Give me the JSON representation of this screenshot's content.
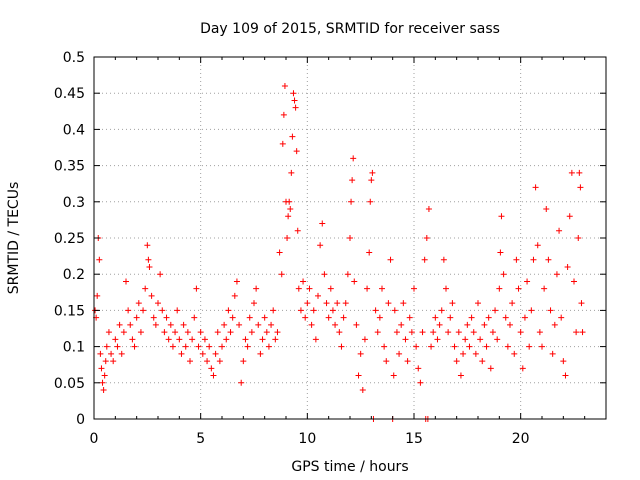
{
  "chart_data": {
    "type": "scatter",
    "title": "Day 109 of 2015, SRMTID for receiver sass",
    "xlabel": "GPS time / hours",
    "ylabel": "SRMTID / TECUs",
    "xlim": [
      0,
      24
    ],
    "ylim": [
      0,
      0.5
    ],
    "xticks": [
      0,
      5,
      10,
      15,
      20
    ],
    "xtick_labels": [
      "0",
      "5",
      "10",
      "15",
      "20"
    ],
    "yticks": [
      0,
      0.05,
      0.1,
      0.15,
      0.2,
      0.25,
      0.3,
      0.35,
      0.4,
      0.45,
      0.5
    ],
    "ytick_labels": [
      "0",
      "0.05",
      "0.1",
      "0.15",
      "0.2",
      "0.25",
      "0.3",
      "0.35",
      "0.4",
      "0.45",
      "0.5"
    ],
    "grid": true,
    "marker": "+",
    "color": "#ff0000",
    "series": [
      {
        "name": "SRMTID",
        "points": [
          [
            0.05,
            0.15
          ],
          [
            0.1,
            0.14
          ],
          [
            0.15,
            0.17
          ],
          [
            0.2,
            0.25
          ],
          [
            0.25,
            0.22
          ],
          [
            0.3,
            0.09
          ],
          [
            0.35,
            0.07
          ],
          [
            0.4,
            0.05
          ],
          [
            0.45,
            0.04
          ],
          [
            0.5,
            0.06
          ],
          [
            0.55,
            0.08
          ],
          [
            0.6,
            0.1
          ],
          [
            0.7,
            0.12
          ],
          [
            0.8,
            0.09
          ],
          [
            0.9,
            0.08
          ],
          [
            1.0,
            0.11
          ],
          [
            1.1,
            0.1
          ],
          [
            1.2,
            0.13
          ],
          [
            1.3,
            0.09
          ],
          [
            1.4,
            0.12
          ],
          [
            1.5,
            0.19
          ],
          [
            1.6,
            0.15
          ],
          [
            1.7,
            0.13
          ],
          [
            1.8,
            0.11
          ],
          [
            1.9,
            0.1
          ],
          [
            2.0,
            0.14
          ],
          [
            2.1,
            0.16
          ],
          [
            2.2,
            0.12
          ],
          [
            2.3,
            0.15
          ],
          [
            2.4,
            0.18
          ],
          [
            2.5,
            0.24
          ],
          [
            2.55,
            0.22
          ],
          [
            2.6,
            0.21
          ],
          [
            2.7,
            0.17
          ],
          [
            2.8,
            0.14
          ],
          [
            2.9,
            0.13
          ],
          [
            3.0,
            0.16
          ],
          [
            3.1,
            0.2
          ],
          [
            3.2,
            0.15
          ],
          [
            3.3,
            0.12
          ],
          [
            3.4,
            0.14
          ],
          [
            3.5,
            0.11
          ],
          [
            3.6,
            0.13
          ],
          [
            3.7,
            0.1
          ],
          [
            3.8,
            0.12
          ],
          [
            3.9,
            0.15
          ],
          [
            4.0,
            0.11
          ],
          [
            4.1,
            0.09
          ],
          [
            4.2,
            0.13
          ],
          [
            4.3,
            0.1
          ],
          [
            4.4,
            0.12
          ],
          [
            4.5,
            0.08
          ],
          [
            4.6,
            0.11
          ],
          [
            4.7,
            0.14
          ],
          [
            4.8,
            0.18
          ],
          [
            4.9,
            0.1
          ],
          [
            5.0,
            0.12
          ],
          [
            5.1,
            0.09
          ],
          [
            5.2,
            0.11
          ],
          [
            5.3,
            0.08
          ],
          [
            5.4,
            0.1
          ],
          [
            5.5,
            0.07
          ],
          [
            5.6,
            0.06
          ],
          [
            5.7,
            0.09
          ],
          [
            5.8,
            0.12
          ],
          [
            5.9,
            0.08
          ],
          [
            6.0,
            0.1
          ],
          [
            6.1,
            0.13
          ],
          [
            6.2,
            0.11
          ],
          [
            6.3,
            0.15
          ],
          [
            6.4,
            0.12
          ],
          [
            6.5,
            0.14
          ],
          [
            6.6,
            0.17
          ],
          [
            6.7,
            0.19
          ],
          [
            6.8,
            0.13
          ],
          [
            6.9,
            0.05
          ],
          [
            7.0,
            0.08
          ],
          [
            7.1,
            0.11
          ],
          [
            7.2,
            0.1
          ],
          [
            7.3,
            0.14
          ],
          [
            7.4,
            0.12
          ],
          [
            7.5,
            0.16
          ],
          [
            7.6,
            0.18
          ],
          [
            7.7,
            0.13
          ],
          [
            7.8,
            0.09
          ],
          [
            7.9,
            0.11
          ],
          [
            8.0,
            0.14
          ],
          [
            8.1,
            0.12
          ],
          [
            8.2,
            0.1
          ],
          [
            8.3,
            0.13
          ],
          [
            8.4,
            0.15
          ],
          [
            8.5,
            0.11
          ],
          [
            8.6,
            0.12
          ],
          [
            8.7,
            0.23
          ],
          [
            8.8,
            0.2
          ],
          [
            8.85,
            0.38
          ],
          [
            8.9,
            0.42
          ],
          [
            8.95,
            0.46
          ],
          [
            9.0,
            0.3
          ],
          [
            9.05,
            0.25
          ],
          [
            9.1,
            0.28
          ],
          [
            9.15,
            0.3
          ],
          [
            9.2,
            0.29
          ],
          [
            9.25,
            0.34
          ],
          [
            9.3,
            0.39
          ],
          [
            9.35,
            0.45
          ],
          [
            9.4,
            0.44
          ],
          [
            9.45,
            0.43
          ],
          [
            9.5,
            0.37
          ],
          [
            9.55,
            0.26
          ],
          [
            9.6,
            0.18
          ],
          [
            9.7,
            0.15
          ],
          [
            9.8,
            0.19
          ],
          [
            9.9,
            0.14
          ],
          [
            10.0,
            0.16
          ],
          [
            10.1,
            0.18
          ],
          [
            10.2,
            0.13
          ],
          [
            10.3,
            0.15
          ],
          [
            10.4,
            0.11
          ],
          [
            10.5,
            0.17
          ],
          [
            10.6,
            0.24
          ],
          [
            10.7,
            0.27
          ],
          [
            10.8,
            0.2
          ],
          [
            10.9,
            0.16
          ],
          [
            11.0,
            0.14
          ],
          [
            11.1,
            0.18
          ],
          [
            11.2,
            0.15
          ],
          [
            11.3,
            0.13
          ],
          [
            11.4,
            0.16
          ],
          [
            11.5,
            0.12
          ],
          [
            11.6,
            0.1
          ],
          [
            11.7,
            0.14
          ],
          [
            11.8,
            0.16
          ],
          [
            11.9,
            0.2
          ],
          [
            12.0,
            0.25
          ],
          [
            12.05,
            0.3
          ],
          [
            12.1,
            0.33
          ],
          [
            12.15,
            0.36
          ],
          [
            12.2,
            0.19
          ],
          [
            12.3,
            0.13
          ],
          [
            12.4,
            0.06
          ],
          [
            12.5,
            0.09
          ],
          [
            12.6,
            0.04
          ],
          [
            12.7,
            0.11
          ],
          [
            12.8,
            0.18
          ],
          [
            12.9,
            0.23
          ],
          [
            12.95,
            0.3
          ],
          [
            13.0,
            0.33
          ],
          [
            13.05,
            0.34
          ],
          [
            13.1,
            0.0
          ],
          [
            13.2,
            0.15
          ],
          [
            13.3,
            0.12
          ],
          [
            13.4,
            0.14
          ],
          [
            13.5,
            0.18
          ],
          [
            13.6,
            0.1
          ],
          [
            13.7,
            0.08
          ],
          [
            13.8,
            0.16
          ],
          [
            13.9,
            0.22
          ],
          [
            14.0,
            0.0
          ],
          [
            14.05,
            0.06
          ],
          [
            14.1,
            0.15
          ],
          [
            14.2,
            0.12
          ],
          [
            14.3,
            0.09
          ],
          [
            14.4,
            0.13
          ],
          [
            14.5,
            0.16
          ],
          [
            14.6,
            0.11
          ],
          [
            14.7,
            0.08
          ],
          [
            14.8,
            0.14
          ],
          [
            14.9,
            0.12
          ],
          [
            15.0,
            0.18
          ],
          [
            15.1,
            0.1
          ],
          [
            15.2,
            0.07
          ],
          [
            15.3,
            0.05
          ],
          [
            15.4,
            0.12
          ],
          [
            15.5,
            0.22
          ],
          [
            15.55,
            0.0
          ],
          [
            15.6,
            0.25
          ],
          [
            15.65,
            0.0
          ],
          [
            15.7,
            0.29
          ],
          [
            15.8,
            0.1
          ],
          [
            15.9,
            0.12
          ],
          [
            16.0,
            0.14
          ],
          [
            16.1,
            0.11
          ],
          [
            16.2,
            0.13
          ],
          [
            16.3,
            0.15
          ],
          [
            16.4,
            0.22
          ],
          [
            16.5,
            0.18
          ],
          [
            16.6,
            0.12
          ],
          [
            16.7,
            0.14
          ],
          [
            16.8,
            0.16
          ],
          [
            16.9,
            0.1
          ],
          [
            17.0,
            0.08
          ],
          [
            17.1,
            0.12
          ],
          [
            17.2,
            0.06
          ],
          [
            17.3,
            0.09
          ],
          [
            17.4,
            0.11
          ],
          [
            17.5,
            0.13
          ],
          [
            17.6,
            0.1
          ],
          [
            17.7,
            0.14
          ],
          [
            17.8,
            0.12
          ],
          [
            17.9,
            0.09
          ],
          [
            18.0,
            0.16
          ],
          [
            18.1,
            0.11
          ],
          [
            18.2,
            0.08
          ],
          [
            18.3,
            0.13
          ],
          [
            18.4,
            0.1
          ],
          [
            18.5,
            0.14
          ],
          [
            18.6,
            0.07
          ],
          [
            18.7,
            0.12
          ],
          [
            18.8,
            0.15
          ],
          [
            18.9,
            0.11
          ],
          [
            19.0,
            0.18
          ],
          [
            19.05,
            0.23
          ],
          [
            19.1,
            0.28
          ],
          [
            19.2,
            0.2
          ],
          [
            19.3,
            0.14
          ],
          [
            19.4,
            0.1
          ],
          [
            19.5,
            0.13
          ],
          [
            19.6,
            0.16
          ],
          [
            19.7,
            0.09
          ],
          [
            19.8,
            0.22
          ],
          [
            19.9,
            0.18
          ],
          [
            20.0,
            0.12
          ],
          [
            20.1,
            0.07
          ],
          [
            20.2,
            0.14
          ],
          [
            20.3,
            0.19
          ],
          [
            20.4,
            0.1
          ],
          [
            20.5,
            0.15
          ],
          [
            20.6,
            0.22
          ],
          [
            20.7,
            0.32
          ],
          [
            20.8,
            0.24
          ],
          [
            20.9,
            0.12
          ],
          [
            21.0,
            0.1
          ],
          [
            21.1,
            0.18
          ],
          [
            21.2,
            0.29
          ],
          [
            21.3,
            0.22
          ],
          [
            21.4,
            0.15
          ],
          [
            21.5,
            0.09
          ],
          [
            21.6,
            0.13
          ],
          [
            21.7,
            0.2
          ],
          [
            21.8,
            0.26
          ],
          [
            21.9,
            0.14
          ],
          [
            22.0,
            0.08
          ],
          [
            22.1,
            0.06
          ],
          [
            22.2,
            0.21
          ],
          [
            22.3,
            0.28
          ],
          [
            22.4,
            0.34
          ],
          [
            22.5,
            0.19
          ],
          [
            22.6,
            0.12
          ],
          [
            22.7,
            0.25
          ],
          [
            22.75,
            0.34
          ],
          [
            22.8,
            0.32
          ],
          [
            22.85,
            0.16
          ],
          [
            22.9,
            0.12
          ]
        ]
      }
    ]
  }
}
